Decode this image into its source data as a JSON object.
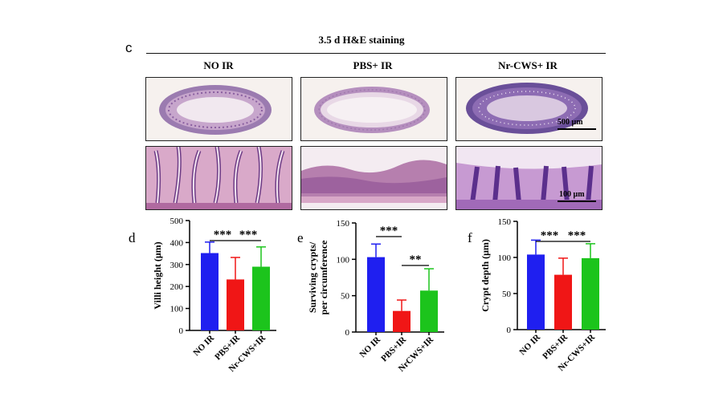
{
  "figure": {
    "panel_c": {
      "letter": "c",
      "title": "3.5 d   H&E staining",
      "groups": [
        "NO IR",
        "PBS+ IR",
        "Nr-CWS+ IR"
      ],
      "scale_low": "500 µm",
      "scale_high": "100 µm"
    }
  },
  "colors": {
    "blue": "#1f1ff0",
    "red": "#f01616",
    "green": "#1cc41c"
  },
  "chart_data": [
    {
      "type": "bar",
      "panel": "d",
      "categories": [
        "NO IR",
        "PBS+IR",
        "Nr-CWS+IR"
      ],
      "values": [
        352,
        232,
        290
      ],
      "errors": [
        50,
        100,
        90
      ],
      "ylabel": "Villi height (μm)",
      "ylim": [
        0,
        500
      ],
      "yticks": [
        "0",
        "100",
        "200",
        "300",
        "400",
        "500"
      ],
      "sig": [
        "***",
        "***"
      ]
    },
    {
      "type": "bar",
      "panel": "e",
      "categories": [
        "NO IR",
        "PBS+IR",
        "NrCWS+IR"
      ],
      "values": [
        103,
        29,
        57
      ],
      "errors": [
        18,
        15,
        30
      ],
      "ylabel_lines": [
        "Surviving crypts/",
        "per circumference"
      ],
      "ylim": [
        0,
        150
      ],
      "yticks": [
        "0",
        "50",
        "100",
        "150"
      ],
      "sig": [
        "***",
        "**"
      ]
    },
    {
      "type": "bar",
      "panel": "f",
      "categories": [
        "NO IR",
        "PBS+IR",
        "Nr-CWS+IR"
      ],
      "values": [
        104,
        76,
        99
      ],
      "errors": [
        20,
        23,
        20
      ],
      "ylabel": "Crypt depth (μm)",
      "ylim": [
        0,
        150
      ],
      "yticks": [
        "0",
        "50",
        "100",
        "150"
      ],
      "sig": [
        "***",
        "***"
      ]
    }
  ]
}
